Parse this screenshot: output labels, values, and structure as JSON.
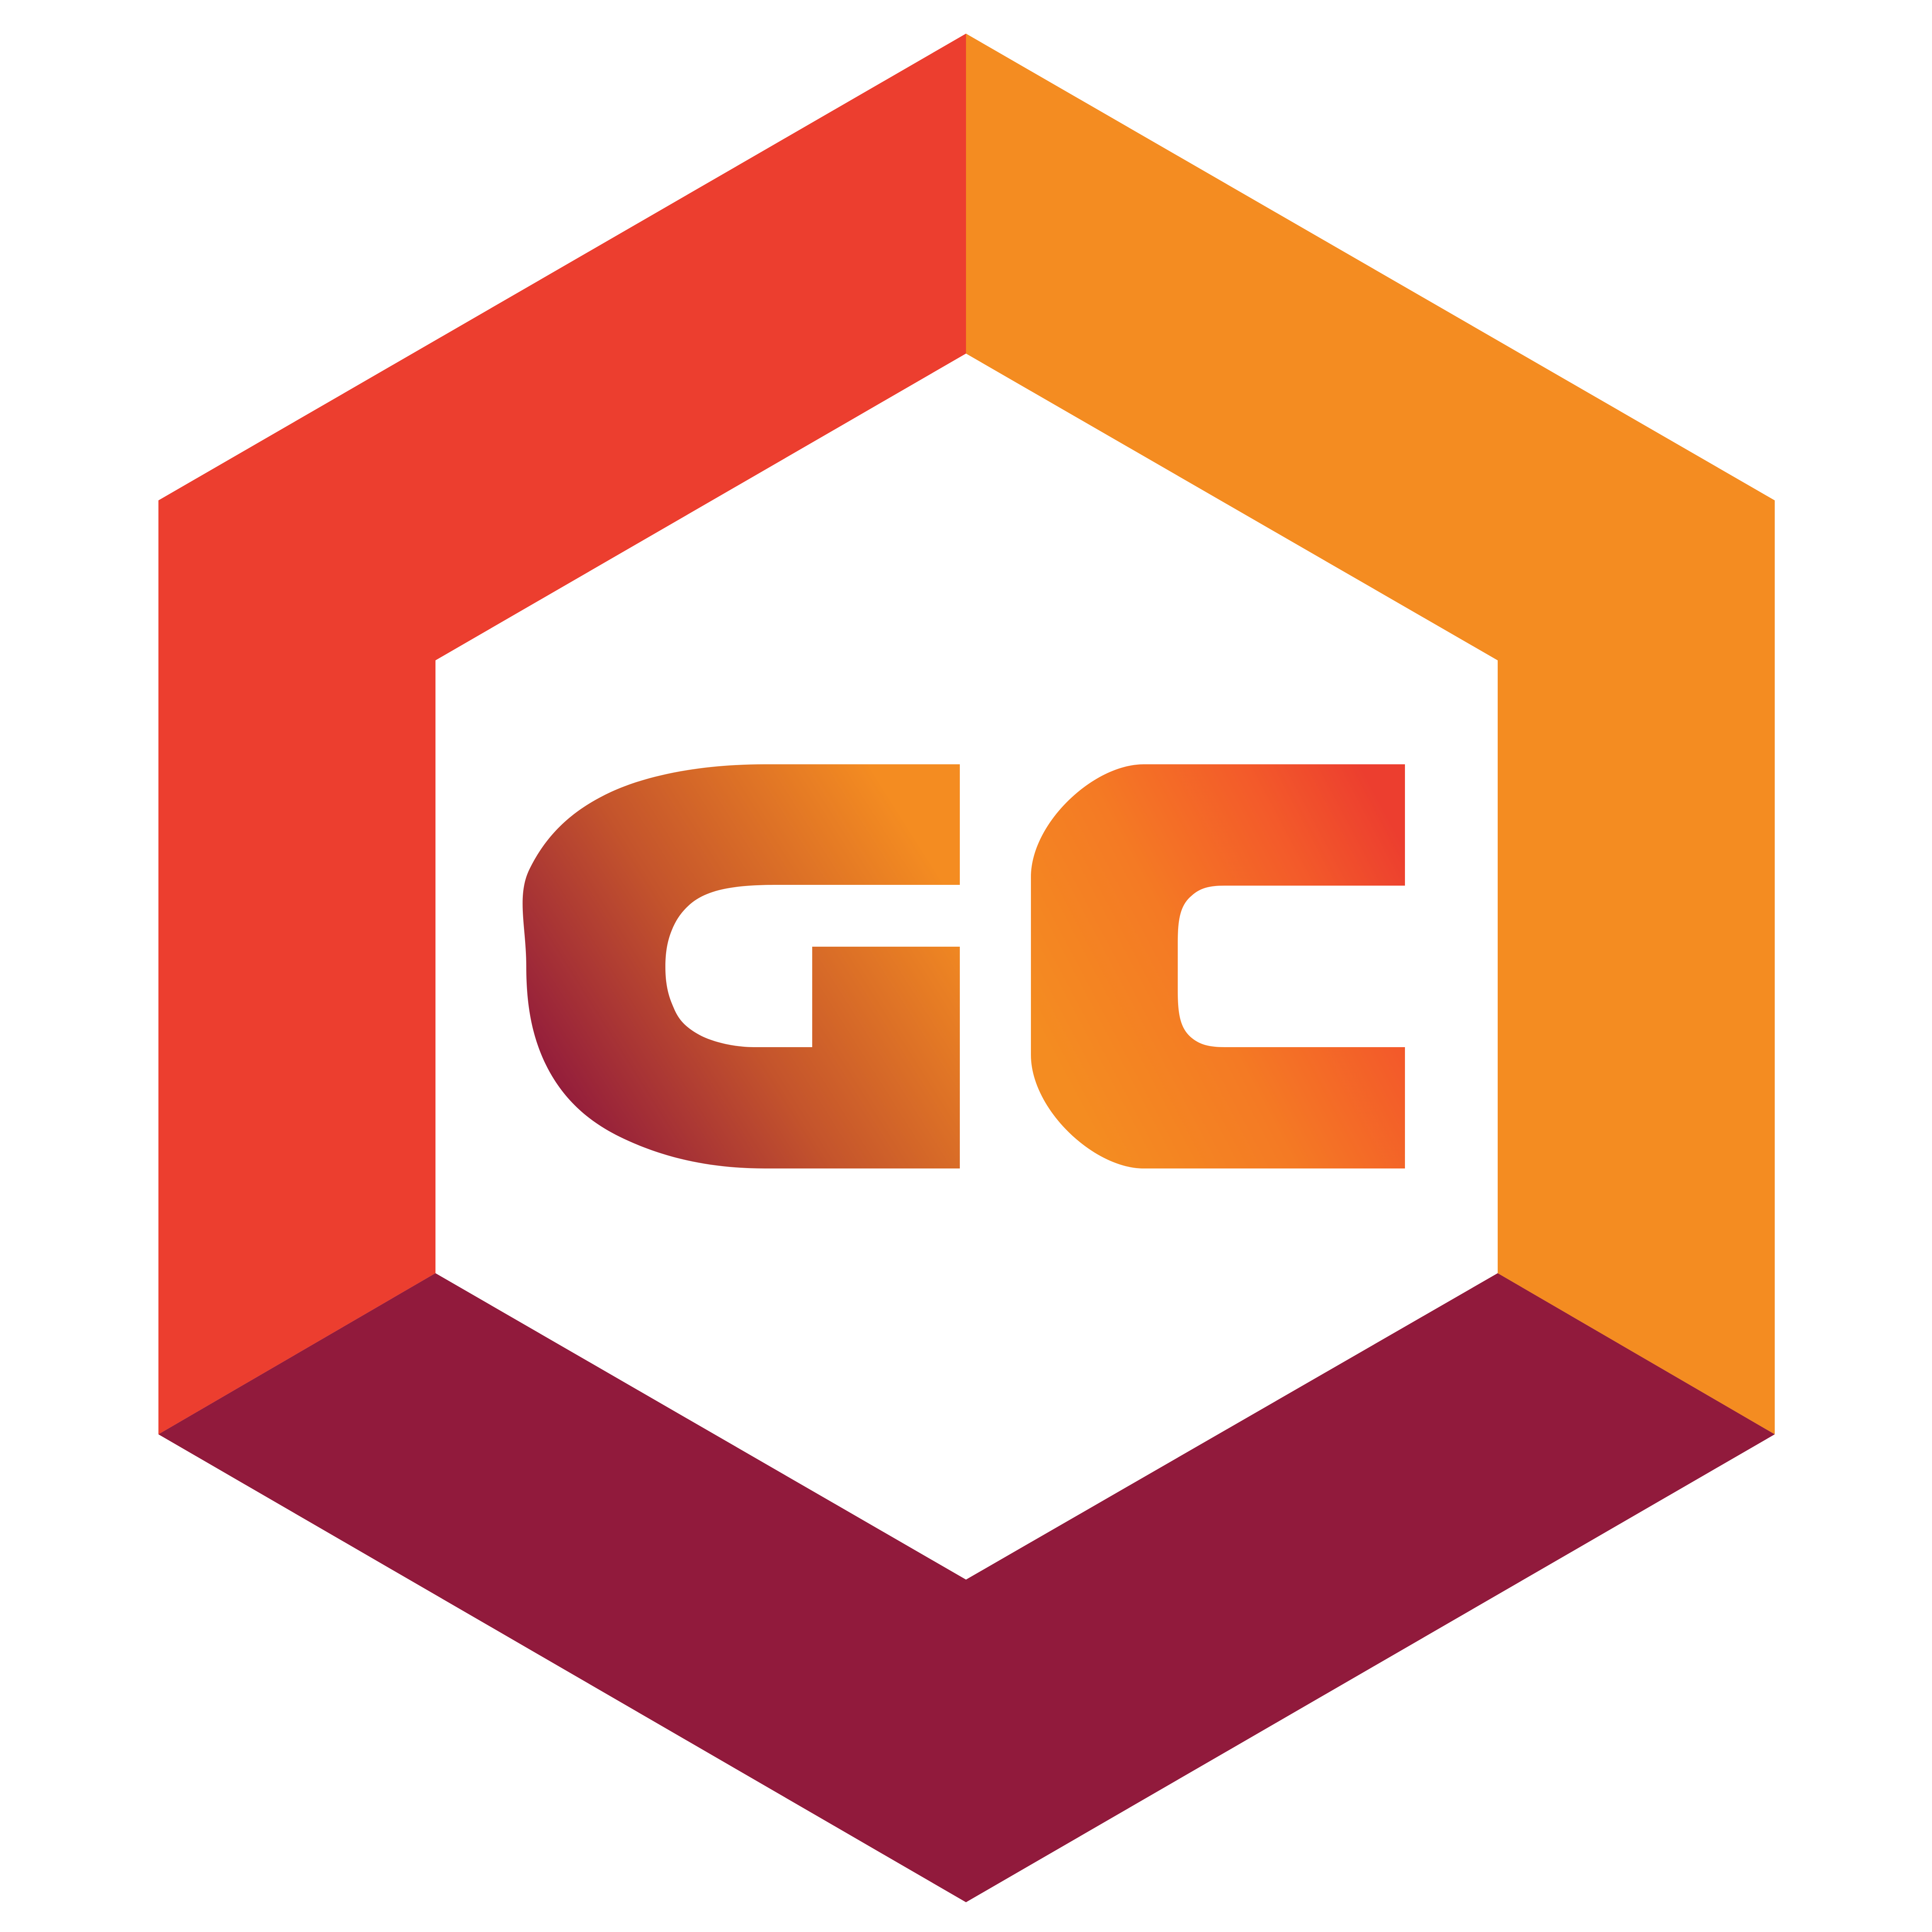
{
  "logo": {
    "monogram": "GC",
    "colors": {
      "background": "#ffffff",
      "left_panel": "#EC3E2F",
      "right_panel": "#F48C21",
      "bottom_panel": "#911A3C",
      "letter_g_gradient": [
        "#911A3C",
        "#C4542C",
        "#F48C21"
      ],
      "letter_c_gradient": [
        "#F48C21",
        "#F47A24",
        "#F35A2A",
        "#EC3E2F"
      ]
    }
  }
}
